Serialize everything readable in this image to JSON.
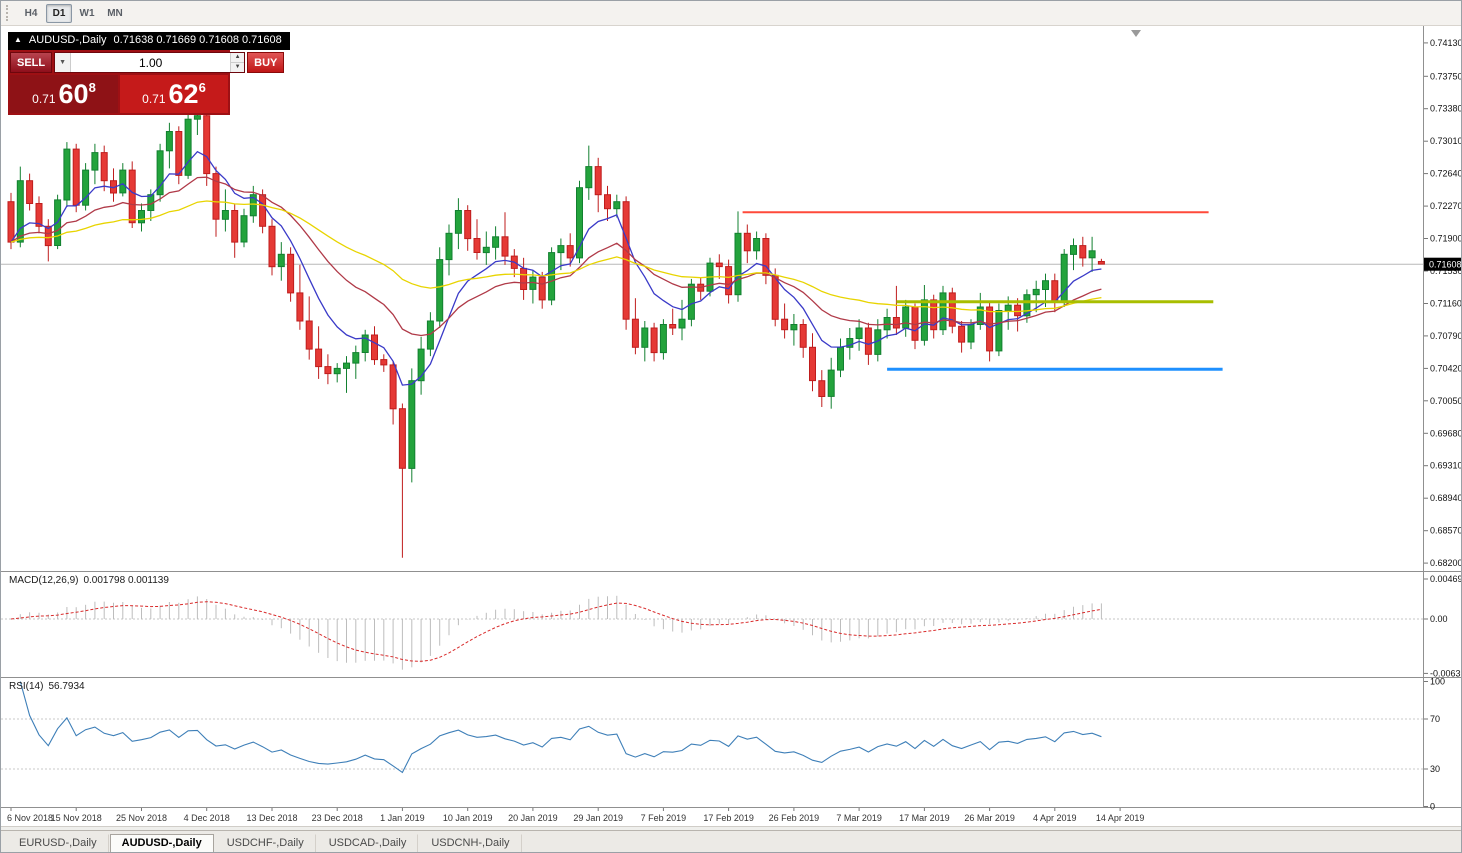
{
  "toolbar": {
    "timeframes": [
      "H4",
      "D1",
      "W1",
      "MN"
    ],
    "active_timeframe": "D1"
  },
  "title_bar": {
    "collapse_icon": "▲",
    "symbol": "AUDUSD-,Daily",
    "ohlc": "0.71638 0.71669 0.71608 0.71608"
  },
  "trade_panel": {
    "sell_label": "SELL",
    "buy_label": "BUY",
    "volume": "1.00",
    "sell_price": {
      "prefix": "0.71",
      "big": "60",
      "sup": "8"
    },
    "buy_price": {
      "prefix": "0.71",
      "big": "62",
      "sup": "6"
    }
  },
  "bottom_tabs": {
    "items": [
      "EURUSD-,Daily",
      "AUDUSD-,Daily",
      "USDCHF-,Daily",
      "USDCAD-,Daily",
      "USDCNH-,Daily"
    ],
    "active": "AUDUSD-,Daily"
  },
  "chart_data": {
    "type": "candlestick",
    "title": "AUDUSD-,Daily",
    "ohlc_display": {
      "open": "0.71638",
      "high": "0.71669",
      "low": "0.71608",
      "close": "0.71608"
    },
    "current_price": 0.71608,
    "current_price_label": "0.71608",
    "y_range": [
      0.6811,
      0.7432
    ],
    "y_axis_labels": [
      "0.74130",
      "0.73750",
      "0.73380",
      "0.73010",
      "0.72640",
      "0.72270",
      "0.71900",
      "0.71530",
      "0.71160",
      "0.70790",
      "0.70420",
      "0.70050",
      "0.69680",
      "0.69310",
      "0.68940",
      "0.68570",
      "0.68200"
    ],
    "x_axis_labels": [
      "6 Nov 2018",
      "15 Nov 2018",
      "25 Nov 2018",
      "4 Dec 2018",
      "13 Dec 2018",
      "23 Dec 2018",
      "1 Jan 2019",
      "10 Jan 2019",
      "20 Jan 2019",
      "29 Jan 2019",
      "7 Feb 2019",
      "17 Feb 2019",
      "26 Feb 2019",
      "7 Mar 2019",
      "17 Mar 2019",
      "26 Mar 2019",
      "4 Apr 2019",
      "14 Apr 2019"
    ],
    "candle_colors": {
      "bull": "#23A33C",
      "bull_border": "#128030",
      "bear": "#E53935",
      "bear_border": "#BF1D1D"
    },
    "candles": [
      [
        0.7232,
        0.7242,
        0.7178,
        0.7186
      ],
      [
        0.7186,
        0.7272,
        0.718,
        0.7256
      ],
      [
        0.7256,
        0.7264,
        0.7222,
        0.723
      ],
      [
        0.723,
        0.7238,
        0.7196,
        0.7204
      ],
      [
        0.7204,
        0.7212,
        0.7164,
        0.7182
      ],
      [
        0.7182,
        0.724,
        0.7178,
        0.7234
      ],
      [
        0.7234,
        0.73,
        0.7226,
        0.7292
      ],
      [
        0.7292,
        0.7298,
        0.722,
        0.7228
      ],
      [
        0.7228,
        0.7276,
        0.7222,
        0.7268
      ],
      [
        0.7268,
        0.7298,
        0.7252,
        0.7288
      ],
      [
        0.7288,
        0.7296,
        0.7244,
        0.7256
      ],
      [
        0.7256,
        0.727,
        0.7232,
        0.7242
      ],
      [
        0.7242,
        0.7276,
        0.7238,
        0.7268
      ],
      [
        0.7268,
        0.7278,
        0.7202,
        0.7208
      ],
      [
        0.7208,
        0.723,
        0.7198,
        0.7222
      ],
      [
        0.7222,
        0.7246,
        0.721,
        0.724
      ],
      [
        0.724,
        0.7298,
        0.7232,
        0.729
      ],
      [
        0.729,
        0.7322,
        0.727,
        0.7312
      ],
      [
        0.7312,
        0.7318,
        0.7252,
        0.7262
      ],
      [
        0.7262,
        0.7336,
        0.7258,
        0.7326
      ],
      [
        0.7326,
        0.7338,
        0.7308,
        0.733
      ],
      [
        0.733,
        0.7334,
        0.725,
        0.7264
      ],
      [
        0.7264,
        0.7272,
        0.7192,
        0.7212
      ],
      [
        0.7212,
        0.7246,
        0.7198,
        0.7222
      ],
      [
        0.7222,
        0.723,
        0.7168,
        0.7186
      ],
      [
        0.7186,
        0.7224,
        0.718,
        0.7216
      ],
      [
        0.7216,
        0.725,
        0.7208,
        0.724
      ],
      [
        0.724,
        0.7246,
        0.7196,
        0.7204
      ],
      [
        0.7204,
        0.7212,
        0.7148,
        0.7158
      ],
      [
        0.7158,
        0.7186,
        0.7142,
        0.7172
      ],
      [
        0.7172,
        0.718,
        0.7118,
        0.7128
      ],
      [
        0.7128,
        0.716,
        0.7086,
        0.7096
      ],
      [
        0.7096,
        0.7124,
        0.7052,
        0.7064
      ],
      [
        0.7064,
        0.709,
        0.703,
        0.7044
      ],
      [
        0.7044,
        0.7058,
        0.7024,
        0.7036
      ],
      [
        0.7036,
        0.7048,
        0.7026,
        0.7042
      ],
      [
        0.7042,
        0.7056,
        0.7014,
        0.7048
      ],
      [
        0.7048,
        0.7068,
        0.703,
        0.706
      ],
      [
        0.706,
        0.7086,
        0.705,
        0.708
      ],
      [
        0.708,
        0.709,
        0.7046,
        0.7052
      ],
      [
        0.7052,
        0.7058,
        0.7038,
        0.7046
      ],
      [
        0.7046,
        0.705,
        0.6978,
        0.6996
      ],
      [
        0.6996,
        0.7002,
        0.6826,
        0.6928
      ],
      [
        0.6928,
        0.7042,
        0.6912,
        0.7028
      ],
      [
        0.7028,
        0.7078,
        0.7012,
        0.7064
      ],
      [
        0.7064,
        0.7106,
        0.7056,
        0.7096
      ],
      [
        0.7096,
        0.718,
        0.7088,
        0.7166
      ],
      [
        0.7166,
        0.7206,
        0.7148,
        0.7196
      ],
      [
        0.7196,
        0.7236,
        0.7178,
        0.7222
      ],
      [
        0.7222,
        0.7228,
        0.7176,
        0.719
      ],
      [
        0.719,
        0.7212,
        0.7166,
        0.7174
      ],
      [
        0.7174,
        0.7198,
        0.716,
        0.718
      ],
      [
        0.718,
        0.7204,
        0.7166,
        0.7192
      ],
      [
        0.7192,
        0.722,
        0.716,
        0.717
      ],
      [
        0.717,
        0.7178,
        0.7146,
        0.7156
      ],
      [
        0.7156,
        0.7168,
        0.712,
        0.7132
      ],
      [
        0.7132,
        0.7154,
        0.7116,
        0.7146
      ],
      [
        0.7146,
        0.7152,
        0.711,
        0.712
      ],
      [
        0.712,
        0.718,
        0.7114,
        0.7174
      ],
      [
        0.7174,
        0.719,
        0.7154,
        0.7182
      ],
      [
        0.7182,
        0.7196,
        0.7158,
        0.7168
      ],
      [
        0.7168,
        0.7256,
        0.7162,
        0.7248
      ],
      [
        0.7248,
        0.7296,
        0.7234,
        0.7272
      ],
      [
        0.7272,
        0.7282,
        0.722,
        0.724
      ],
      [
        0.724,
        0.725,
        0.721,
        0.7224
      ],
      [
        0.7224,
        0.724,
        0.7214,
        0.7232
      ],
      [
        0.7232,
        0.7238,
        0.7086,
        0.7098
      ],
      [
        0.7098,
        0.7122,
        0.7058,
        0.7066
      ],
      [
        0.7066,
        0.7096,
        0.705,
        0.7088
      ],
      [
        0.7088,
        0.7094,
        0.705,
        0.706
      ],
      [
        0.706,
        0.7098,
        0.7052,
        0.7092
      ],
      [
        0.7092,
        0.711,
        0.708,
        0.7088
      ],
      [
        0.7088,
        0.712,
        0.7074,
        0.7098
      ],
      [
        0.7098,
        0.7144,
        0.709,
        0.7138
      ],
      [
        0.7138,
        0.7146,
        0.712,
        0.713
      ],
      [
        0.713,
        0.7168,
        0.7124,
        0.7162
      ],
      [
        0.7162,
        0.7172,
        0.7144,
        0.7158
      ],
      [
        0.7158,
        0.7166,
        0.7116,
        0.7126
      ],
      [
        0.7126,
        0.7221,
        0.7118,
        0.7196
      ],
      [
        0.7196,
        0.7206,
        0.7162,
        0.7176
      ],
      [
        0.7176,
        0.7198,
        0.7166,
        0.719
      ],
      [
        0.719,
        0.7196,
        0.7138,
        0.7148
      ],
      [
        0.7148,
        0.7156,
        0.709,
        0.7098
      ],
      [
        0.7098,
        0.7116,
        0.7076,
        0.7086
      ],
      [
        0.7086,
        0.7104,
        0.7068,
        0.7092
      ],
      [
        0.7092,
        0.7098,
        0.7054,
        0.7066
      ],
      [
        0.7066,
        0.7082,
        0.7016,
        0.7028
      ],
      [
        0.7028,
        0.704,
        0.6998,
        0.701
      ],
      [
        0.701,
        0.7054,
        0.6996,
        0.704
      ],
      [
        0.704,
        0.7076,
        0.7032,
        0.7066
      ],
      [
        0.7066,
        0.7088,
        0.7052,
        0.7076
      ],
      [
        0.7076,
        0.7098,
        0.7062,
        0.7088
      ],
      [
        0.7088,
        0.7094,
        0.7046,
        0.7058
      ],
      [
        0.7058,
        0.7098,
        0.705,
        0.7086
      ],
      [
        0.7086,
        0.711,
        0.7076,
        0.71
      ],
      [
        0.71,
        0.7136,
        0.708,
        0.7088
      ],
      [
        0.7088,
        0.712,
        0.7078,
        0.7112
      ],
      [
        0.7112,
        0.7116,
        0.7064,
        0.7074
      ],
      [
        0.7074,
        0.7137,
        0.7068,
        0.712
      ],
      [
        0.712,
        0.7126,
        0.7076,
        0.7086
      ],
      [
        0.7086,
        0.7136,
        0.708,
        0.7128
      ],
      [
        0.7128,
        0.7134,
        0.7082,
        0.709
      ],
      [
        0.709,
        0.7096,
        0.706,
        0.7072
      ],
      [
        0.7072,
        0.7098,
        0.7064,
        0.7092
      ],
      [
        0.7092,
        0.7128,
        0.7086,
        0.7112
      ],
      [
        0.7112,
        0.7118,
        0.705,
        0.7062
      ],
      [
        0.7062,
        0.7116,
        0.7056,
        0.7108
      ],
      [
        0.7108,
        0.7124,
        0.7086,
        0.7114
      ],
      [
        0.7114,
        0.7122,
        0.7084,
        0.7102
      ],
      [
        0.7102,
        0.7132,
        0.7094,
        0.7126
      ],
      [
        0.7126,
        0.7142,
        0.7106,
        0.7132
      ],
      [
        0.7132,
        0.715,
        0.7112,
        0.7142
      ],
      [
        0.7142,
        0.715,
        0.7106,
        0.7118
      ],
      [
        0.7118,
        0.7178,
        0.7112,
        0.7172
      ],
      [
        0.7172,
        0.719,
        0.7154,
        0.7182
      ],
      [
        0.7182,
        0.7192,
        0.7158,
        0.7168
      ],
      [
        0.7168,
        0.7192,
        0.7152,
        0.7176
      ],
      [
        0.71638,
        0.71669,
        0.71608,
        0.71608
      ]
    ],
    "moving_averages": [
      {
        "name": "fast-ma",
        "period": 8,
        "color": "#3A3AC8"
      },
      {
        "name": "medium-ma",
        "period": 20,
        "color": "#B03A48"
      },
      {
        "name": "slow-ma",
        "period": 45,
        "color": "#E8D400"
      }
    ],
    "horizontal_lines": [
      {
        "name": "resistance-line",
        "price": 0.722,
        "color": "#FF4A3A",
        "width": 2,
        "from_index": 79.5,
        "to_index": 129.5
      },
      {
        "name": "pivot-line",
        "price": 0.7118,
        "color": "#A8BE00",
        "width": 3,
        "from_index": 96,
        "to_index": 130
      },
      {
        "name": "support-line",
        "price": 0.7041,
        "color": "#1E90FF",
        "width": 3,
        "from_index": 95,
        "to_index": 131
      }
    ],
    "indicators": [
      {
        "type": "MACD",
        "label": "MACD(12,26,9)",
        "values_display": "0.001798 0.001139",
        "params": [
          12,
          26,
          9
        ],
        "scale_labels": [
          "0.004694",
          "0.00",
          "-0.00639"
        ],
        "histogram_color": "#BDBDBD",
        "signal_color": "#D92B2B"
      },
      {
        "type": "RSI",
        "label": "RSI(14)",
        "value_display": "56.7934",
        "period": 14,
        "scale_labels": [
          "100",
          "70",
          "30",
          "0"
        ],
        "levels": [
          70,
          30
        ],
        "line_color": "#3E7FB8"
      }
    ]
  }
}
